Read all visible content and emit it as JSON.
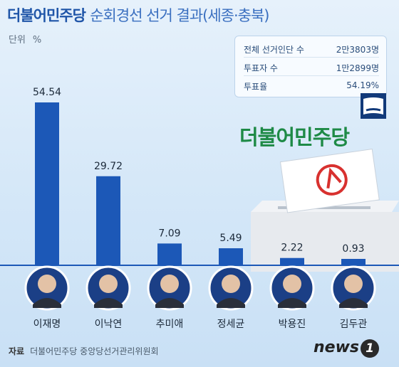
{
  "title": {
    "party": "더불어민주당",
    "rest": "순회경선 선거 결과(세종·충북)"
  },
  "unit": {
    "label": "단위",
    "symbol": "%"
  },
  "info": [
    {
      "key": "전체 선거인단 수",
      "value": "2만3803명"
    },
    {
      "key": "투표자 수",
      "value": "1만2899명"
    },
    {
      "key": "투표율",
      "value": "54.19%"
    }
  ],
  "brand": "더불어민주당",
  "colors": {
    "title": "#1f55a8",
    "bar": "#1c58b7",
    "brand": "#1e8a46",
    "ballot_mark": "#d8312f"
  },
  "chart_data": {
    "type": "bar",
    "categories": [
      "이재명",
      "이낙연",
      "추미애",
      "정세균",
      "박용진",
      "김두관"
    ],
    "values": [
      54.54,
      29.72,
      7.09,
      5.49,
      2.22,
      0.93
    ],
    "value_labels": [
      "54.54",
      "29.72",
      "7.09",
      "5.49",
      "2.22",
      "0.93"
    ],
    "title": "순회경선 선거 결과(세종·충북)",
    "xlabel": "",
    "ylabel": "",
    "ylim": [
      0,
      54.54
    ],
    "grid": false,
    "legend": "none"
  },
  "footer": {
    "label": "자료",
    "source": "더불어민주당 중앙당선거관리위원회"
  },
  "logo": {
    "text": "news",
    "num": "1"
  }
}
